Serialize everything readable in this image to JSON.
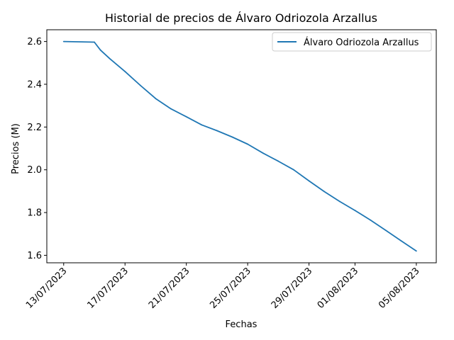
{
  "chart_data": {
    "type": "line",
    "title": "Historial de precios de Álvaro Odriozola Arzallus",
    "xlabel": "Fechas",
    "ylabel": "Precios (M)",
    "legend_position": "top-right",
    "grid": false,
    "x_range_days": [
      -1.1,
      24.3
    ],
    "ylim": [
      1.565,
      2.655
    ],
    "x_ticks": [
      {
        "day": 0,
        "label": "13/07/2023"
      },
      {
        "day": 4,
        "label": "17/07/2023"
      },
      {
        "day": 8,
        "label": "21/07/2023"
      },
      {
        "day": 12,
        "label": "25/07/2023"
      },
      {
        "day": 16,
        "label": "29/07/2023"
      },
      {
        "day": 19,
        "label": "01/08/2023"
      },
      {
        "day": 23,
        "label": "05/08/2023"
      }
    ],
    "y_ticks": [
      1.6,
      1.8,
      2.0,
      2.2,
      2.4,
      2.6
    ],
    "series": [
      {
        "name": "Álvaro Odriozola Arzallus",
        "color": "#1f77b4",
        "points": [
          {
            "day": 0,
            "value": 2.6
          },
          {
            "day": 2,
            "value": 2.597
          },
          {
            "day": 2.4,
            "value": 2.56
          },
          {
            "day": 3,
            "value": 2.52
          },
          {
            "day": 4,
            "value": 2.46
          },
          {
            "day": 5,
            "value": 2.395
          },
          {
            "day": 6,
            "value": 2.333
          },
          {
            "day": 7,
            "value": 2.285
          },
          {
            "day": 8,
            "value": 2.248
          },
          {
            "day": 9,
            "value": 2.21
          },
          {
            "day": 10,
            "value": 2.183
          },
          {
            "day": 11,
            "value": 2.153
          },
          {
            "day": 12,
            "value": 2.12
          },
          {
            "day": 13,
            "value": 2.078
          },
          {
            "day": 14,
            "value": 2.04
          },
          {
            "day": 15,
            "value": 2.0
          },
          {
            "day": 16,
            "value": 1.948
          },
          {
            "day": 17,
            "value": 1.898
          },
          {
            "day": 18,
            "value": 1.852
          },
          {
            "day": 19,
            "value": 1.81
          },
          {
            "day": 20,
            "value": 1.765
          },
          {
            "day": 21,
            "value": 1.717
          },
          {
            "day": 22,
            "value": 1.668
          },
          {
            "day": 23,
            "value": 1.62
          }
        ]
      }
    ]
  }
}
